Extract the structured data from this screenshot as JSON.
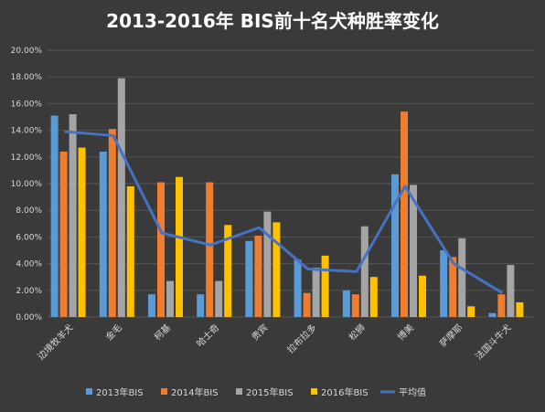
{
  "chart_data": {
    "type": "bar",
    "title": "2013-2016年 BIS前十名犬种胜率变化",
    "categories": [
      "边境牧羊犬",
      "金毛",
      "柯基",
      "哈士奇",
      "贵宾",
      "拉布拉多",
      "松狮",
      "博美",
      "萨摩耶",
      "法国斗牛犬"
    ],
    "yticks": [
      "0.00%",
      "2.00%",
      "4.00%",
      "6.00%",
      "8.00%",
      "10.00%",
      "12.00%",
      "14.00%",
      "16.00%",
      "18.00%",
      "20.00%"
    ],
    "ylim": [
      0,
      20
    ],
    "grid": true,
    "legend_position": "bottom",
    "series": [
      {
        "name": "2013年BIS",
        "color": "#5b9bd5",
        "values": [
          15.1,
          12.4,
          1.7,
          1.7,
          5.7,
          4.3,
          2.0,
          10.7,
          5.0,
          0.3
        ]
      },
      {
        "name": "2014年BIS",
        "color": "#ed7d31",
        "values": [
          12.4,
          14.1,
          10.1,
          10.1,
          6.1,
          1.8,
          1.7,
          15.4,
          4.5,
          1.7
        ]
      },
      {
        "name": "2015年BIS",
        "color": "#a5a5a5",
        "values": [
          15.2,
          17.9,
          2.7,
          2.7,
          7.9,
          3.7,
          6.8,
          9.9,
          5.9,
          3.9
        ]
      },
      {
        "name": "2016年BIS",
        "color": "#ffc000",
        "values": [
          12.7,
          9.8,
          10.5,
          6.9,
          7.1,
          4.6,
          3.0,
          3.1,
          0.8,
          1.1
        ]
      }
    ],
    "line_series": {
      "name": "平均值",
      "color": "#4472c4",
      "values": [
        13.9,
        13.6,
        6.3,
        5.4,
        6.7,
        3.6,
        3.4,
        9.8,
        4.0,
        1.8
      ]
    }
  }
}
